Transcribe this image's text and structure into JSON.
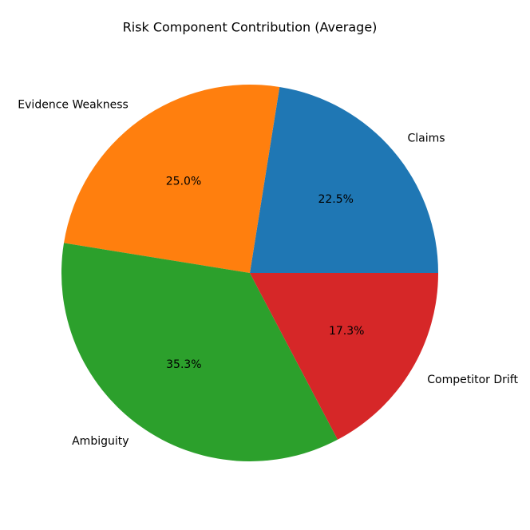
{
  "chart_data": {
    "type": "pie",
    "title": "Risk Component Contribution (Average)",
    "categories": [
      "Claims",
      "Evidence Weakness",
      "Ambiguity",
      "Competitor Drift"
    ],
    "values": [
      22.5,
      25.0,
      35.3,
      17.3
    ],
    "value_labels": [
      "22.5%",
      "25.0%",
      "35.3%",
      "17.3%"
    ],
    "colors": [
      "#1f77b4",
      "#ff7f0e",
      "#2ca02c",
      "#d62728"
    ]
  }
}
